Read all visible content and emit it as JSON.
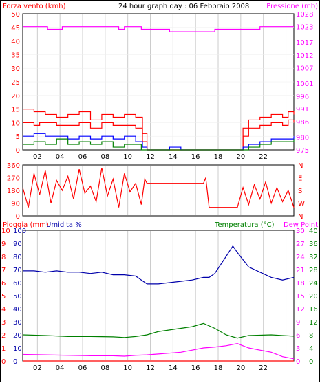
{
  "header": {
    "wind_label": "Forza vento (kmh)",
    "title": "24 hour graph day : 06 Febbraio 2008",
    "pressure_label": "Pressione (mb)"
  },
  "colors": {
    "wind": "#ff0000",
    "gust": "#0000ff",
    "wind_low": "#008000",
    "pressure": "#ff00ff",
    "humidity": "#0000aa",
    "temperature": "#008000",
    "dewpoint": "#ff00ff",
    "rain": "#ff0000",
    "grid": "#cccccc"
  },
  "footer_panel": {
    "rain_label": "Pioggia (mm)",
    "humidity_label": "Umidita %",
    "temp_label": "Temperatura (°C)",
    "dew_label": "Dew Point"
  },
  "chart_data": [
    {
      "type": "line",
      "id": "wind-pressure",
      "x_ticks": [
        "02",
        "04",
        "06",
        "08",
        "10",
        "12",
        "14",
        "16",
        "18",
        "20",
        "22",
        "I"
      ],
      "left_axis": {
        "label": "Forza vento (kmh)",
        "ticks": [
          0,
          5,
          10,
          15,
          20,
          25,
          30,
          35,
          40,
          45,
          50
        ],
        "ylim": [
          0,
          50
        ]
      },
      "right_axis": {
        "label": "Pressione (mb)",
        "ticks": [
          975,
          980,
          986,
          991,
          996,
          1001,
          1007,
          1012,
          1017,
          1023,
          1028
        ],
        "ylim": [
          975,
          1028
        ]
      },
      "series": [
        {
          "id": "wind-avg",
          "axis": "left",
          "x": [
            0,
            1,
            1.5,
            2,
            3,
            4,
            5,
            6,
            7,
            8,
            9,
            10,
            10.6,
            11,
            12,
            13,
            14,
            15,
            16,
            17,
            18,
            19,
            19.5,
            20,
            21,
            22,
            23,
            23.5,
            24
          ],
          "values": [
            10,
            9,
            10,
            10,
            9,
            9,
            10,
            8,
            10,
            9,
            9,
            8,
            3,
            0,
            0,
            0,
            0,
            0,
            0,
            0,
            0,
            0,
            5,
            8,
            9,
            10,
            9,
            11,
            10
          ]
        },
        {
          "id": "wind-gust",
          "axis": "left",
          "x": [
            0,
            1,
            2,
            3,
            4,
            5,
            6,
            7,
            8,
            9,
            10,
            10.6,
            11,
            12,
            13,
            14,
            15,
            16,
            17,
            18,
            19,
            19.5,
            20,
            21,
            22,
            23,
            23.5,
            24
          ],
          "values": [
            15,
            14,
            13,
            12,
            13,
            14,
            11,
            13,
            12,
            13,
            12,
            6,
            0,
            0,
            0,
            0,
            0,
            0,
            0,
            0,
            0,
            8,
            11,
            12,
            13,
            12,
            14,
            13
          ]
        },
        {
          "id": "wind-dir-speed",
          "axis": "left",
          "x": [
            0,
            1,
            2,
            3,
            4,
            5,
            6,
            7,
            8,
            9,
            10,
            10.6,
            11,
            12,
            13,
            14,
            15,
            16,
            17,
            18,
            19,
            19.5,
            20,
            21,
            22,
            23,
            24
          ],
          "values": [
            5,
            6,
            5,
            5,
            4,
            5,
            4,
            5,
            4,
            5,
            3,
            1,
            0,
            0,
            1,
            0,
            0,
            0,
            0,
            0,
            0,
            1,
            2,
            3,
            4,
            4,
            5
          ]
        },
        {
          "id": "wind-low",
          "axis": "left",
          "x": [
            0,
            1,
            2,
            3,
            4,
            5,
            6,
            7,
            8,
            9,
            10,
            10.5,
            11,
            12,
            13,
            14,
            15,
            16,
            17,
            18,
            19,
            19.5,
            20,
            21,
            22,
            23,
            24
          ],
          "values": [
            2,
            3,
            2,
            4,
            2,
            3,
            2,
            3,
            1,
            2,
            2,
            0,
            0,
            0,
            0,
            0,
            0,
            0,
            0,
            0,
            0,
            0,
            1,
            2,
            3,
            3,
            4
          ]
        },
        {
          "id": "pressure",
          "axis": "right",
          "x": [
            0,
            2,
            2.2,
            3,
            3.5,
            4,
            6,
            8,
            8.5,
            9,
            10,
            10.5,
            12,
            13,
            14,
            15,
            16,
            17,
            18,
            19,
            20,
            21,
            22,
            23,
            24
          ],
          "values": [
            1023,
            1023,
            1022,
            1022,
            1023,
            1023,
            1023,
            1023,
            1022,
            1023,
            1023,
            1022,
            1022,
            1021,
            1021,
            1021,
            1021,
            1022,
            1022,
            1022,
            1022,
            1023,
            1023,
            1023,
            1023
          ]
        }
      ]
    },
    {
      "type": "line",
      "id": "wind-direction",
      "left_ticks": [
        0,
        90,
        180,
        270,
        360
      ],
      "right_ticks": [
        "N",
        "W",
        "S",
        "E",
        "N"
      ],
      "ylim": [
        0,
        360
      ],
      "x": [
        0,
        0.5,
        1,
        1.5,
        2,
        2.5,
        3,
        3.5,
        4,
        4.5,
        5,
        5.5,
        6,
        6.5,
        7,
        7.5,
        8,
        8.5,
        9,
        9.5,
        10,
        10.5,
        10.8,
        11,
        16,
        16.2,
        16.5,
        17,
        18,
        19,
        19.5,
        20,
        20.5,
        21,
        21.5,
        22,
        22.5,
        23,
        23.5,
        24
      ],
      "values": [
        200,
        60,
        300,
        150,
        320,
        90,
        250,
        180,
        280,
        120,
        330,
        160,
        210,
        100,
        340,
        140,
        260,
        60,
        300,
        170,
        230,
        80,
        260,
        230,
        230,
        270,
        60,
        60,
        60,
        60,
        200,
        80,
        220,
        120,
        240,
        90,
        200,
        100,
        180,
        60
      ]
    },
    {
      "type": "line",
      "id": "temp-humidity-rain",
      "x_ticks": [
        "02",
        "04",
        "06",
        "08",
        "10",
        "12",
        "14",
        "16",
        "18",
        "20",
        "22",
        "I"
      ],
      "rain_axis": {
        "label": "Pioggia (mm)",
        "ticks": [
          0,
          1,
          2,
          3,
          4,
          5,
          6,
          7,
          8,
          9,
          10
        ],
        "ylim": [
          0,
          10
        ]
      },
      "humidity_axis": {
        "label": "Umidita %",
        "ticks": [
          0,
          10,
          20,
          30,
          40,
          50,
          60,
          70,
          80,
          90,
          100
        ],
        "ylim": [
          0,
          100
        ]
      },
      "temp_axis": {
        "label": "Temperatura (°C)",
        "ticks": [
          0,
          4,
          8,
          12,
          16,
          20,
          24,
          28,
          32,
          36,
          40
        ],
        "ylim": [
          0,
          40
        ]
      },
      "dew_axis": {
        "label": "Dew Point",
        "ticks": [
          0,
          3,
          6,
          9,
          12,
          15,
          18,
          21,
          24,
          27,
          30
        ],
        "ylim": [
          0,
          30
        ]
      },
      "series": [
        {
          "id": "humidity",
          "axis": "humidity",
          "x": [
            0,
            1,
            2,
            3,
            4,
            5,
            6,
            7,
            8,
            9,
            10,
            10.5,
            11,
            12,
            13,
            14,
            15,
            16,
            16.5,
            17,
            18,
            18.6,
            19,
            20,
            21,
            22,
            23,
            24
          ],
          "values": [
            69,
            69,
            68,
            69,
            68,
            68,
            67,
            68,
            66,
            66,
            65,
            62,
            59,
            59,
            60,
            61,
            62,
            64,
            64,
            67,
            80,
            88,
            83,
            72,
            68,
            64,
            62,
            64
          ]
        },
        {
          "id": "temperature",
          "axis": "temp",
          "x": [
            0,
            2,
            4,
            6,
            8,
            9,
            10,
            11,
            12,
            14,
            15,
            16,
            17,
            18,
            19,
            20,
            22,
            23,
            24
          ],
          "values": [
            8,
            7.8,
            7.5,
            7.5,
            7.4,
            7.2,
            7.5,
            8,
            9,
            10,
            10.5,
            11.5,
            10,
            8,
            7,
            7.8,
            8,
            7.8,
            7.6
          ]
        },
        {
          "id": "dewpoint",
          "axis": "dew",
          "x": [
            0,
            2,
            4,
            6,
            8,
            9,
            10,
            11,
            12,
            14,
            15,
            16,
            17,
            18,
            19,
            20,
            21,
            22,
            23,
            24
          ],
          "values": [
            1.5,
            1.4,
            1.3,
            1.2,
            1.2,
            1.1,
            1.3,
            1.4,
            1.6,
            2,
            2.5,
            3,
            3.2,
            3.5,
            4,
            3,
            2.5,
            2,
            1,
            0.5
          ]
        },
        {
          "id": "rain",
          "axis": "rain",
          "x": [
            0,
            24
          ],
          "values": [
            0,
            0
          ]
        }
      ]
    }
  ]
}
